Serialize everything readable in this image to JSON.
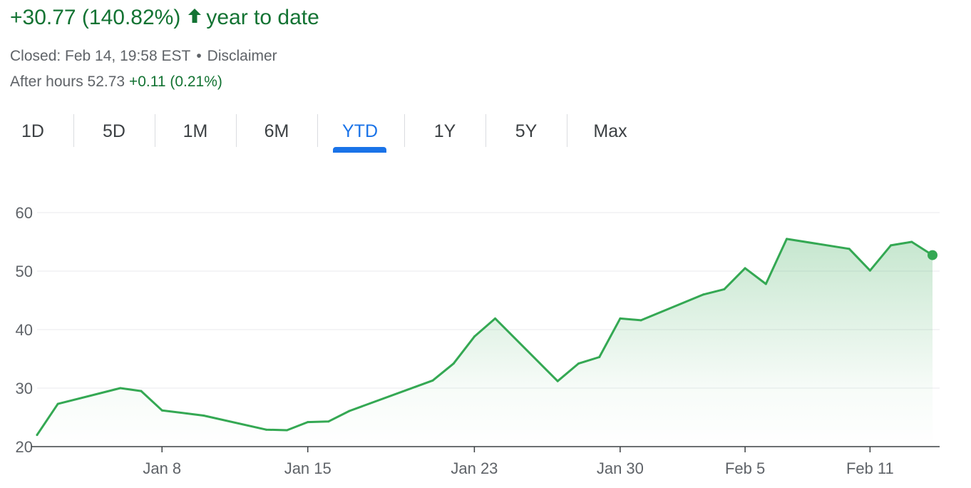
{
  "summary": {
    "change_text": "+30.77 (140.82%)",
    "period_text": "year to date",
    "arrow_icon": "arrow-up-icon",
    "change_color": "#137333"
  },
  "status": {
    "closed_text": "Closed: Feb 14, 19:58 EST",
    "separator": "•",
    "disclaimer_label": "Disclaimer",
    "after_hours_label": "After hours 52.73",
    "after_hours_change": "+0.11 (0.21%)"
  },
  "tabs": [
    {
      "label": "1D"
    },
    {
      "label": "5D"
    },
    {
      "label": "1M"
    },
    {
      "label": "6M"
    },
    {
      "label": "YTD",
      "active": true
    },
    {
      "label": "1Y"
    },
    {
      "label": "5Y"
    },
    {
      "label": "Max"
    }
  ],
  "colors": {
    "line": "#34a853",
    "accent": "#1a73e8",
    "grid": "#e8eaed",
    "axis": "#3c4043",
    "text_muted": "#5f6368"
  },
  "chart_data": {
    "type": "area",
    "title": "",
    "xlabel": "",
    "ylabel": "",
    "ylim": [
      20,
      60
    ],
    "yticks": [
      20,
      30,
      40,
      50,
      60
    ],
    "xticks": [
      {
        "label": "Jan 8",
        "x": "2025-01-08"
      },
      {
        "label": "Jan 15",
        "x": "2025-01-15"
      },
      {
        "label": "Jan 23",
        "x": "2025-01-23"
      },
      {
        "label": "Jan 30",
        "x": "2025-01-30"
      },
      {
        "label": "Feb 5",
        "x": "2025-02-05"
      },
      {
        "label": "Feb 11",
        "x": "2025-02-11"
      }
    ],
    "grid": true,
    "end_marker": true,
    "series": [
      {
        "points": [
          {
            "x": "2025-01-02",
            "y": 22.0
          },
          {
            "x": "2025-01-03",
            "y": 27.3
          },
          {
            "x": "2025-01-06",
            "y": 30.0
          },
          {
            "x": "2025-01-07",
            "y": 29.5
          },
          {
            "x": "2025-01-08",
            "y": 26.2
          },
          {
            "x": "2025-01-10",
            "y": 25.3
          },
          {
            "x": "2025-01-13",
            "y": 22.9
          },
          {
            "x": "2025-01-14",
            "y": 22.8
          },
          {
            "x": "2025-01-15",
            "y": 24.2
          },
          {
            "x": "2025-01-16",
            "y": 24.3
          },
          {
            "x": "2025-01-17",
            "y": 26.1
          },
          {
            "x": "2025-01-21",
            "y": 31.3
          },
          {
            "x": "2025-01-22",
            "y": 34.2
          },
          {
            "x": "2025-01-23",
            "y": 38.8
          },
          {
            "x": "2025-01-24",
            "y": 41.9
          },
          {
            "x": "2025-01-27",
            "y": 31.2
          },
          {
            "x": "2025-01-28",
            "y": 34.2
          },
          {
            "x": "2025-01-29",
            "y": 35.3
          },
          {
            "x": "2025-01-30",
            "y": 41.9
          },
          {
            "x": "2025-01-31",
            "y": 41.6
          },
          {
            "x": "2025-02-03",
            "y": 46.0
          },
          {
            "x": "2025-02-04",
            "y": 46.9
          },
          {
            "x": "2025-02-05",
            "y": 50.5
          },
          {
            "x": "2025-02-06",
            "y": 47.8
          },
          {
            "x": "2025-02-07",
            "y": 55.5
          },
          {
            "x": "2025-02-10",
            "y": 53.8
          },
          {
            "x": "2025-02-11",
            "y": 50.1
          },
          {
            "x": "2025-02-12",
            "y": 54.4
          },
          {
            "x": "2025-02-13",
            "y": 55.0
          },
          {
            "x": "2025-02-14",
            "y": 52.73
          }
        ]
      }
    ]
  }
}
